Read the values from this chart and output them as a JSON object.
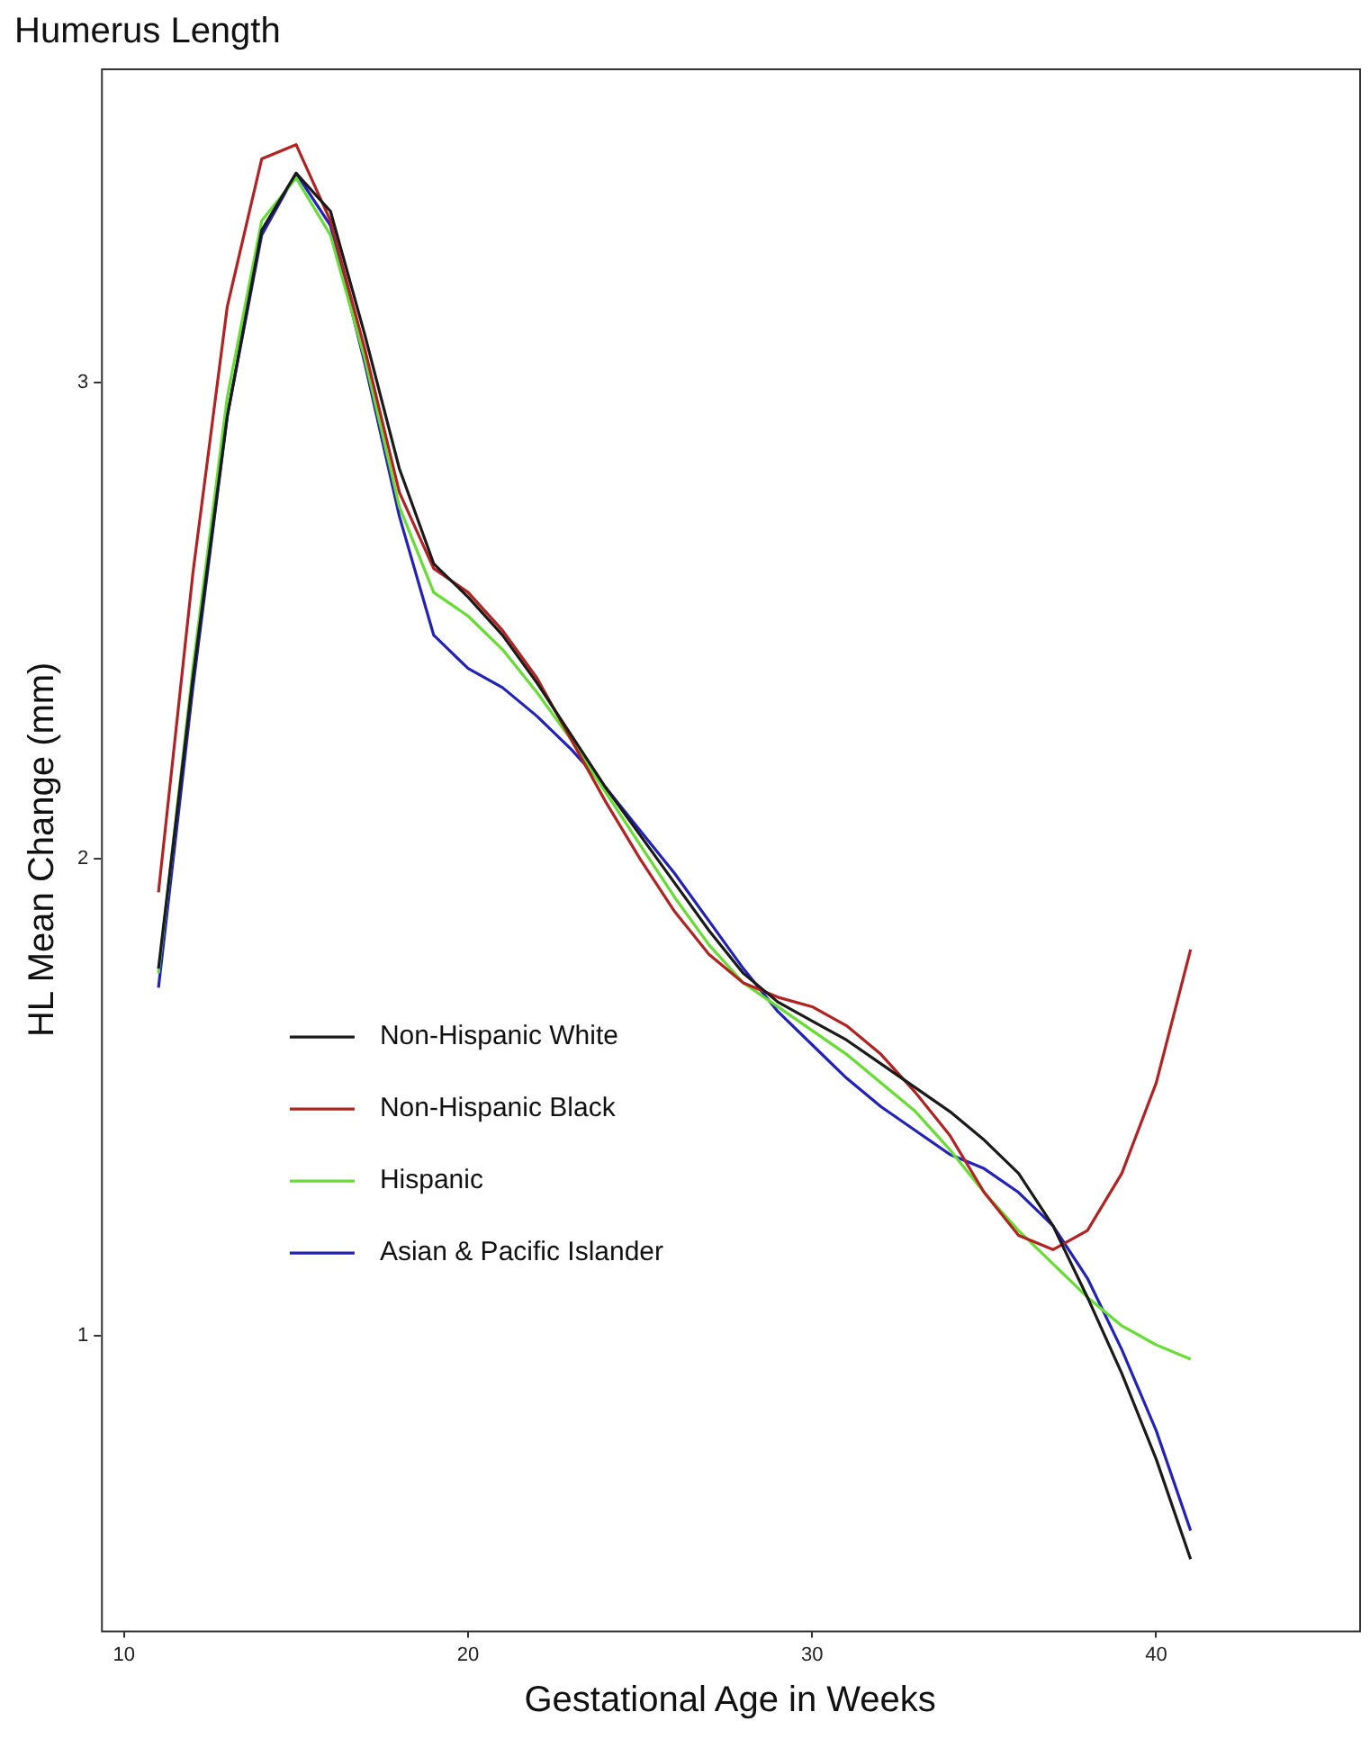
{
  "chart_data": {
    "type": "line",
    "title": "Humerus Length",
    "xlabel": "Gestational Age in Weeks",
    "ylabel": "HL Mean Change (mm)",
    "x": [
      11,
      12,
      13,
      14,
      15,
      16,
      17,
      18,
      19,
      20,
      21,
      22,
      23,
      24,
      25,
      26,
      27,
      28,
      29,
      30,
      31,
      32,
      33,
      34,
      35,
      36,
      37,
      38,
      39,
      40,
      41
    ],
    "xlim": [
      9.33,
      45.9
    ],
    "xticks": [
      10,
      20,
      30,
      40
    ],
    "ylim": [
      0.38,
      3.66
    ],
    "yticks": [
      1,
      2,
      3
    ],
    "grid": false,
    "legend": "left",
    "marker": "none",
    "line_style": "solid",
    "series": [
      {
        "name": "Non-Hispanic White",
        "color": "#1a1a1a",
        "values": [
          1.77,
          2.38,
          2.93,
          3.32,
          3.44,
          3.36,
          3.1,
          2.82,
          2.62,
          2.55,
          2.47,
          2.37,
          2.26,
          2.15,
          2.05,
          1.95,
          1.85,
          1.76,
          1.7,
          1.66,
          1.62,
          1.57,
          1.52,
          1.47,
          1.41,
          1.34,
          1.23,
          1.08,
          0.92,
          0.74,
          0.53
        ]
      },
      {
        "name": "Non-Hispanic Black",
        "color": "#b22222",
        "values": [
          1.93,
          2.6,
          3.16,
          3.47,
          3.5,
          3.34,
          3.07,
          2.77,
          2.61,
          2.56,
          2.48,
          2.38,
          2.25,
          2.12,
          2.0,
          1.89,
          1.8,
          1.74,
          1.71,
          1.69,
          1.65,
          1.59,
          1.51,
          1.42,
          1.3,
          1.21,
          1.18,
          1.22,
          1.34,
          1.53,
          1.81
        ]
      },
      {
        "name": "Hispanic",
        "color": "#66dd33",
        "values": [
          1.76,
          2.4,
          2.97,
          3.34,
          3.43,
          3.31,
          3.05,
          2.74,
          2.56,
          2.51,
          2.44,
          2.35,
          2.25,
          2.14,
          2.03,
          1.92,
          1.82,
          1.74,
          1.69,
          1.64,
          1.59,
          1.53,
          1.47,
          1.39,
          1.3,
          1.22,
          1.15,
          1.08,
          1.02,
          0.98,
          0.95
        ]
      },
      {
        "name": "Asian & Pacific Islander",
        "color": "#2222bb",
        "values": [
          1.73,
          2.36,
          2.93,
          3.31,
          3.44,
          3.33,
          3.04,
          2.72,
          2.47,
          2.4,
          2.36,
          2.3,
          2.23,
          2.15,
          2.06,
          1.97,
          1.87,
          1.77,
          1.68,
          1.61,
          1.54,
          1.48,
          1.43,
          1.38,
          1.35,
          1.3,
          1.23,
          1.12,
          0.97,
          0.8,
          0.59
        ]
      }
    ]
  }
}
